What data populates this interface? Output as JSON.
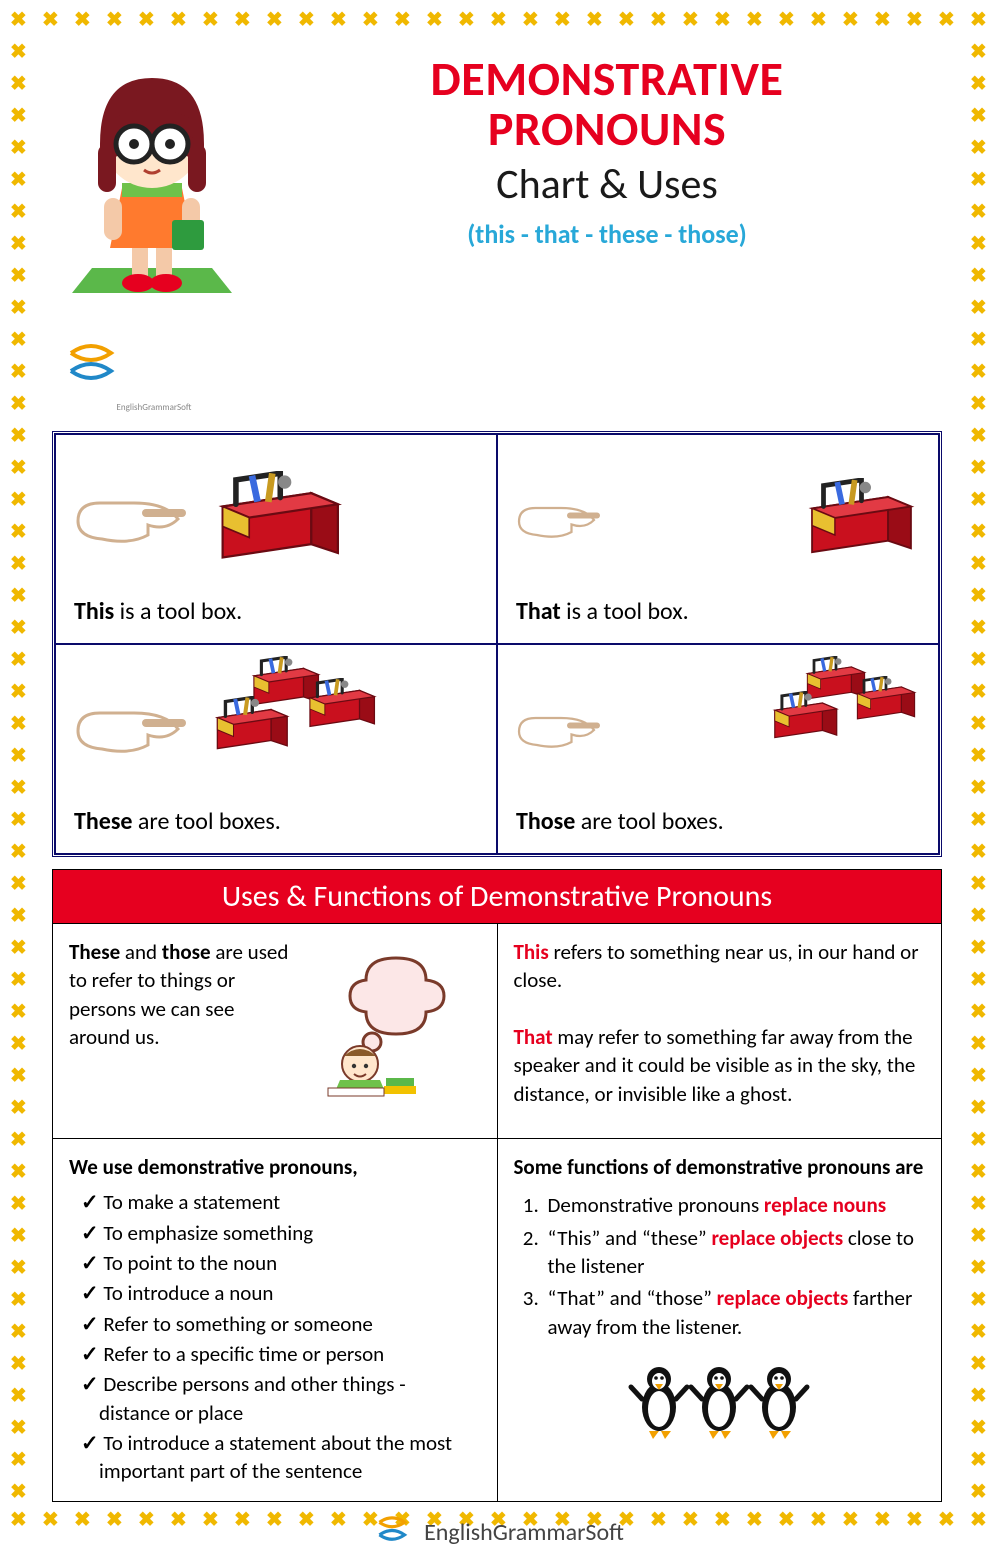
{
  "colors": {
    "accent_red": "#e6001f",
    "border_yellow": "#f0b800",
    "dbl_border": "#0a0a6a",
    "sub_blue": "#28a8d8",
    "text": "#1a1a1a",
    "bg": "#ffffff"
  },
  "title": {
    "line1": "DEMONSTRATIVE",
    "line2": "PRONOUNS",
    "subtitle": "Chart & Uses",
    "mini": "(this - that - these - those)"
  },
  "brand": "EnglishGrammarSoft",
  "examples": [
    {
      "pronoun": "This",
      "rest": " is a tool box.",
      "count": 1,
      "near": true
    },
    {
      "pronoun": "That",
      "rest": " is a tool box.",
      "count": 1,
      "near": false
    },
    {
      "pronoun": "These",
      "rest": " are tool boxes.",
      "count": 3,
      "near": true
    },
    {
      "pronoun": "Those",
      "rest": " are tool boxes.",
      "count": 3,
      "near": false
    }
  ],
  "band": "Uses & Functions of Demonstrative Pronouns",
  "top_left": {
    "pre": "These",
    "mid": " and ",
    "pre2": "those",
    "rest": " are used to refer to things or persons we can see around us."
  },
  "top_right": {
    "p1_b": "This",
    "p1_rest": " refers to something near us, in our hand or close.",
    "p2_b": "That",
    "p2_rest": " may refer to something far away from the speaker and it could be visible as in the sky, the distance, or invisible like a ghost."
  },
  "bottom_left": {
    "lead": "We use demonstrative pronouns,",
    "items": [
      "To make a statement",
      "To emphasize something",
      "To point to the noun",
      "To introduce a noun",
      "Refer to something or someone",
      "Refer to a specific time or person",
      "Describe persons and other things - distance or place",
      "To introduce a statement about the most important part of the sentence"
    ]
  },
  "bottom_right": {
    "lead": "Some functions of demonstrative pronouns are",
    "items": [
      {
        "pre": "Demonstrative pronouns ",
        "hl": "replace nouns",
        "post": ""
      },
      {
        "pre": "“This” and “these” ",
        "hl": "replace objects",
        "post": " close to the listener"
      },
      {
        "pre": "“That” and “those” ",
        "hl": "replace objects",
        "post": " farther away from the listener."
      }
    ]
  }
}
